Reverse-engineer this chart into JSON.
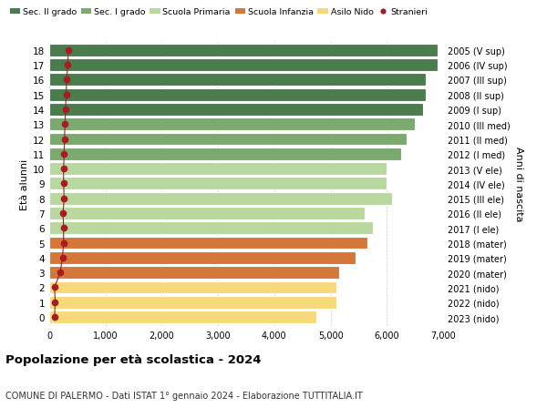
{
  "ages": [
    18,
    17,
    16,
    15,
    14,
    13,
    12,
    11,
    10,
    9,
    8,
    7,
    6,
    5,
    4,
    3,
    2,
    1,
    0
  ],
  "labels_right": [
    "2005 (V sup)",
    "2006 (IV sup)",
    "2007 (III sup)",
    "2008 (II sup)",
    "2009 (I sup)",
    "2010 (III med)",
    "2011 (II med)",
    "2012 (I med)",
    "2013 (V ele)",
    "2014 (IV ele)",
    "2015 (III ele)",
    "2016 (II ele)",
    "2017 (I ele)",
    "2018 (mater)",
    "2019 (mater)",
    "2020 (mater)",
    "2021 (nido)",
    "2022 (nido)",
    "2023 (nido)"
  ],
  "bar_values": [
    6900,
    6900,
    6700,
    6700,
    6650,
    6500,
    6350,
    6250,
    6000,
    6000,
    6100,
    5600,
    5750,
    5650,
    5450,
    5150,
    5100,
    5100,
    4750
  ],
  "stranieri_values": [
    340,
    330,
    310,
    300,
    290,
    280,
    270,
    265,
    255,
    255,
    265,
    245,
    255,
    255,
    235,
    195,
    95,
    105,
    95
  ],
  "bar_colors": [
    "#4a7c4e",
    "#4a7c4e",
    "#4a7c4e",
    "#4a7c4e",
    "#4a7c4e",
    "#7aaa6e",
    "#7aaa6e",
    "#7aaa6e",
    "#b8d8a0",
    "#b8d8a0",
    "#b8d8a0",
    "#b8d8a0",
    "#b8d8a0",
    "#d4783a",
    "#d4783a",
    "#d4783a",
    "#f5d97a",
    "#f5d97a",
    "#f5d97a"
  ],
  "legend_labels": [
    "Sec. II grado",
    "Sec. I grado",
    "Scuola Primaria",
    "Scuola Infanzia",
    "Asilo Nido",
    "Stranieri"
  ],
  "legend_colors": [
    "#4a7c4e",
    "#7aaa6e",
    "#b8d8a0",
    "#d4783a",
    "#f5d97a",
    "#a61c22"
  ],
  "stranieri_color": "#a61c22",
  "ylabel_left": "Età alunni",
  "ylabel_right": "Anni di nascita",
  "title_bold": "Popolazione per età scolastica - 2024",
  "subtitle": "COMUNE DI PALERMO - Dati ISTAT 1° gennaio 2024 - Elaborazione TUTTITALIA.IT",
  "xlim": [
    0,
    7000
  ],
  "xticks": [
    0,
    1000,
    2000,
    3000,
    4000,
    5000,
    6000,
    7000
  ],
  "xtick_labels": [
    "0",
    "1,000",
    "2,000",
    "3,000",
    "4,000",
    "5,000",
    "6,000",
    "7,000"
  ],
  "bg_color": "#ffffff",
  "bar_height": 0.85
}
